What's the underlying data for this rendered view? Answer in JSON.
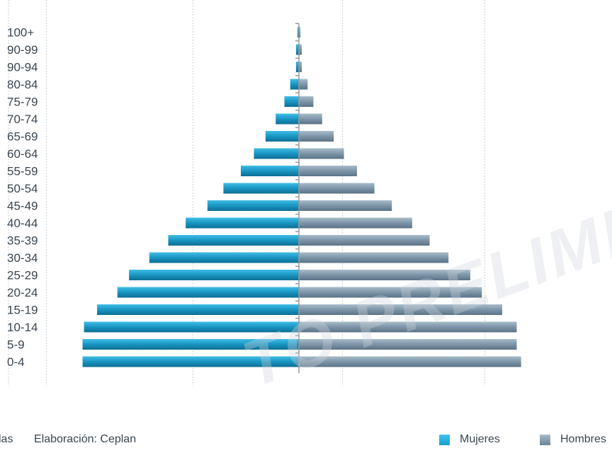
{
  "chart_data": {
    "type": "bar",
    "orientation": "horizontal-population-pyramid",
    "categories": [
      "100+",
      "90-99",
      "90-94",
      "80-84",
      "75-79",
      "70-74",
      "65-69",
      "60-64",
      "55-59",
      "50-54",
      "45-49",
      "40-44",
      "35-39",
      "30-34",
      "25-29",
      "20-24",
      "15-19",
      "10-14",
      "5-9",
      "0-4"
    ],
    "series": [
      {
        "name": "Mujeres",
        "color": "#1a9fcc",
        "values": [
          0.1,
          0.2,
          0.2,
          0.6,
          1.0,
          1.6,
          2.3,
          3.1,
          4.0,
          5.2,
          6.3,
          7.8,
          9.0,
          10.3,
          11.7,
          12.5,
          13.9,
          14.8,
          14.9,
          14.9
        ]
      },
      {
        "name": "Hombres",
        "color": "#7e95a6",
        "values": [
          0.1,
          0.2,
          0.2,
          0.6,
          1.0,
          1.6,
          2.4,
          3.1,
          4.0,
          5.2,
          6.4,
          7.8,
          9.0,
          10.3,
          11.8,
          12.6,
          14.0,
          15.0,
          15.0,
          15.3
        ]
      }
    ],
    "xlim": [
      -20,
      20
    ],
    "grid": true,
    "legend_position": "bottom-right"
  },
  "footer": {
    "source_fragment": "las",
    "credit": "Elaboración: Ceplan"
  },
  "watermark": "TO PRELIMINAR",
  "colors": {
    "mujeres": "#1a9fcc",
    "hombres": "#7e95a6",
    "grid": "#c9cfd5",
    "axis": "#999999"
  }
}
